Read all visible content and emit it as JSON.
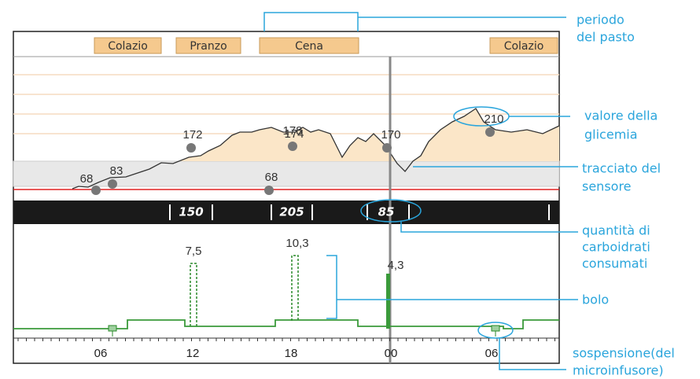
{
  "meals": [
    "Colazio",
    "Pranzo",
    "Cena",
    "Colazio"
  ],
  "readings": [
    "68",
    "83",
    "172",
    "178",
    "174",
    "68",
    "170",
    "210"
  ],
  "carbs": [
    "150",
    "205",
    "85"
  ],
  "boluses": [
    "7,5",
    "10,3",
    "4,3"
  ],
  "x_labels": [
    "06",
    "12",
    "18",
    "00",
    "06"
  ],
  "callouts": {
    "meal_period": [
      "periodo",
      "del pasto"
    ],
    "glucose_value": [
      "valore della",
      "glicemia"
    ],
    "sensor_trace": [
      "tracciato del",
      "sensore"
    ],
    "carbs": [
      "quantità di",
      "carboidrati",
      "consumati"
    ],
    "bolus": [
      "bolo"
    ],
    "suspension": [
      "sospensione(del",
      "microinfusore)"
    ]
  }
}
